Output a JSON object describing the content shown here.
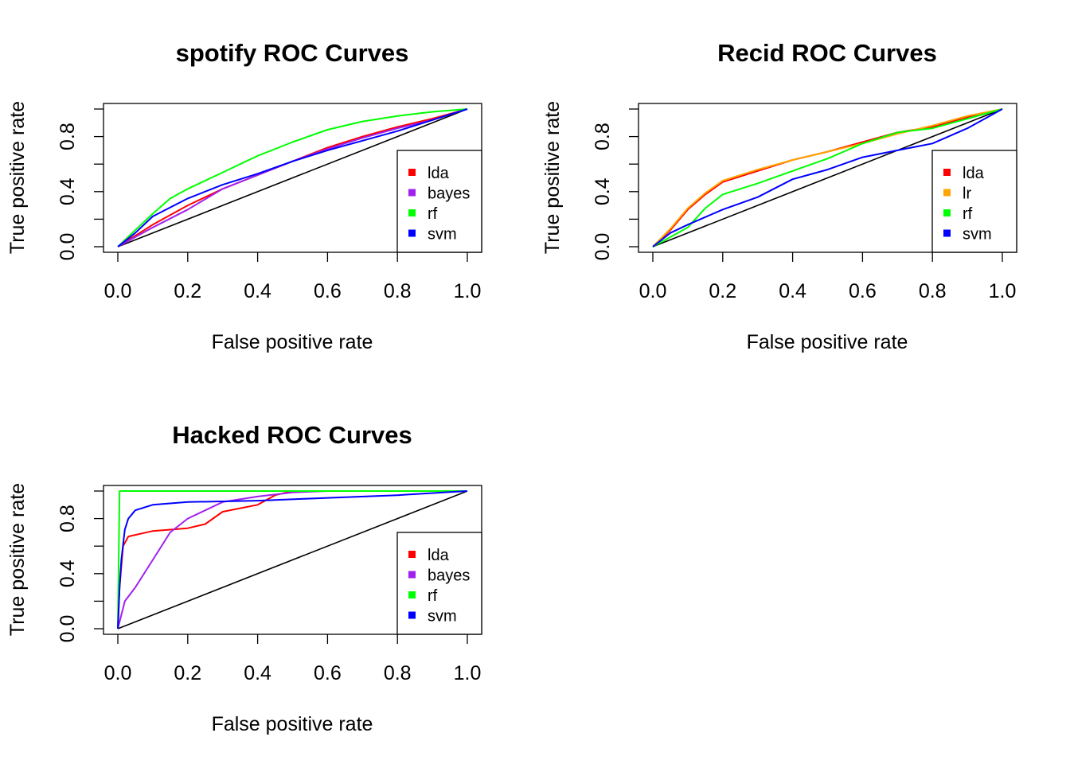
{
  "chart_data": [
    {
      "type": "line",
      "title": "spotify ROC Curves",
      "xlabel": "False positive rate",
      "ylabel": "True positive rate",
      "xlim": [
        0,
        1
      ],
      "ylim": [
        0,
        1
      ],
      "xticks": [
        "0.0",
        "0.2",
        "0.4",
        "0.6",
        "0.8",
        "1.0"
      ],
      "yticks": [
        "0.0",
        "0.4",
        "0.8"
      ],
      "legend_position": "bottom-right",
      "diagonal": true,
      "series": [
        {
          "name": "lda",
          "color": "#ff0000",
          "points": [
            [
              0,
              0
            ],
            [
              0.05,
              0.08
            ],
            [
              0.1,
              0.16
            ],
            [
              0.2,
              0.3
            ],
            [
              0.3,
              0.42
            ],
            [
              0.4,
              0.52
            ],
            [
              0.5,
              0.62
            ],
            [
              0.6,
              0.72
            ],
            [
              0.7,
              0.8
            ],
            [
              0.8,
              0.87
            ],
            [
              0.9,
              0.93
            ],
            [
              1,
              1
            ]
          ]
        },
        {
          "name": "bayes",
          "color": "#a020f0",
          "points": [
            [
              0,
              0
            ],
            [
              0.05,
              0.07
            ],
            [
              0.1,
              0.14
            ],
            [
              0.2,
              0.27
            ],
            [
              0.3,
              0.42
            ],
            [
              0.4,
              0.52
            ],
            [
              0.5,
              0.62
            ],
            [
              0.6,
              0.71
            ],
            [
              0.7,
              0.79
            ],
            [
              0.8,
              0.86
            ],
            [
              0.9,
              0.92
            ],
            [
              1,
              1
            ]
          ]
        },
        {
          "name": "rf",
          "color": "#00ff00",
          "points": [
            [
              0,
              0
            ],
            [
              0.05,
              0.12
            ],
            [
              0.1,
              0.24
            ],
            [
              0.15,
              0.35
            ],
            [
              0.2,
              0.42
            ],
            [
              0.3,
              0.54
            ],
            [
              0.4,
              0.66
            ],
            [
              0.5,
              0.76
            ],
            [
              0.6,
              0.85
            ],
            [
              0.7,
              0.91
            ],
            [
              0.8,
              0.95
            ],
            [
              0.9,
              0.98
            ],
            [
              1,
              1
            ]
          ]
        },
        {
          "name": "svm",
          "color": "#0000ff",
          "points": [
            [
              0,
              0
            ],
            [
              0.05,
              0.1
            ],
            [
              0.1,
              0.22
            ],
            [
              0.2,
              0.35
            ],
            [
              0.3,
              0.45
            ],
            [
              0.4,
              0.53
            ],
            [
              0.5,
              0.62
            ],
            [
              0.6,
              0.7
            ],
            [
              0.7,
              0.77
            ],
            [
              0.8,
              0.84
            ],
            [
              0.9,
              0.92
            ],
            [
              1,
              1
            ]
          ]
        }
      ]
    },
    {
      "type": "line",
      "title": "Recid ROC Curves",
      "xlabel": "False positive rate",
      "ylabel": "True positive rate",
      "xlim": [
        0,
        1
      ],
      "ylim": [
        0,
        1
      ],
      "xticks": [
        "0.0",
        "0.2",
        "0.4",
        "0.6",
        "0.8",
        "1.0"
      ],
      "yticks": [
        "0.0",
        "0.4",
        "0.8"
      ],
      "legend_position": "bottom-right",
      "diagonal": true,
      "series": [
        {
          "name": "lda",
          "color": "#ff0000",
          "points": [
            [
              0,
              0
            ],
            [
              0.05,
              0.12
            ],
            [
              0.1,
              0.27
            ],
            [
              0.15,
              0.38
            ],
            [
              0.2,
              0.47
            ],
            [
              0.3,
              0.55
            ],
            [
              0.4,
              0.63
            ],
            [
              0.5,
              0.69
            ],
            [
              0.6,
              0.76
            ],
            [
              0.7,
              0.83
            ],
            [
              0.8,
              0.87
            ],
            [
              0.9,
              0.94
            ],
            [
              1,
              1
            ]
          ]
        },
        {
          "name": "lr",
          "color": "#ffa500",
          "points": [
            [
              0,
              0
            ],
            [
              0.05,
              0.13
            ],
            [
              0.1,
              0.28
            ],
            [
              0.15,
              0.39
            ],
            [
              0.2,
              0.48
            ],
            [
              0.3,
              0.56
            ],
            [
              0.4,
              0.63
            ],
            [
              0.5,
              0.69
            ],
            [
              0.6,
              0.75
            ],
            [
              0.7,
              0.82
            ],
            [
              0.8,
              0.88
            ],
            [
              0.9,
              0.95
            ],
            [
              1,
              1
            ]
          ]
        },
        {
          "name": "rf",
          "color": "#00ff00",
          "points": [
            [
              0,
              0
            ],
            [
              0.05,
              0.07
            ],
            [
              0.1,
              0.14
            ],
            [
              0.15,
              0.28
            ],
            [
              0.2,
              0.38
            ],
            [
              0.3,
              0.46
            ],
            [
              0.4,
              0.55
            ],
            [
              0.5,
              0.64
            ],
            [
              0.6,
              0.75
            ],
            [
              0.7,
              0.83
            ],
            [
              0.8,
              0.86
            ],
            [
              0.9,
              0.93
            ],
            [
              1,
              1
            ]
          ]
        },
        {
          "name": "svm",
          "color": "#0000ff",
          "points": [
            [
              0,
              0
            ],
            [
              0.05,
              0.1
            ],
            [
              0.1,
              0.16
            ],
            [
              0.2,
              0.27
            ],
            [
              0.3,
              0.36
            ],
            [
              0.4,
              0.49
            ],
            [
              0.5,
              0.56
            ],
            [
              0.6,
              0.65
            ],
            [
              0.7,
              0.7
            ],
            [
              0.8,
              0.75
            ],
            [
              0.9,
              0.86
            ],
            [
              1,
              1
            ]
          ]
        }
      ]
    },
    {
      "type": "line",
      "title": "Hacked ROC Curves",
      "xlabel": "False positive rate",
      "ylabel": "True positive rate",
      "xlim": [
        0,
        1
      ],
      "ylim": [
        0,
        1
      ],
      "xticks": [
        "0.0",
        "0.2",
        "0.4",
        "0.6",
        "0.8",
        "1.0"
      ],
      "yticks": [
        "0.0",
        "0.4",
        "0.8"
      ],
      "legend_position": "bottom-right",
      "diagonal": true,
      "series": [
        {
          "name": "lda",
          "color": "#ff0000",
          "points": [
            [
              0,
              0
            ],
            [
              0.005,
              0.3
            ],
            [
              0.015,
              0.6
            ],
            [
              0.03,
              0.67
            ],
            [
              0.1,
              0.71
            ],
            [
              0.2,
              0.73
            ],
            [
              0.25,
              0.76
            ],
            [
              0.3,
              0.85
            ],
            [
              0.4,
              0.9
            ],
            [
              0.45,
              0.97
            ],
            [
              0.5,
              1
            ],
            [
              1,
              1
            ]
          ]
        },
        {
          "name": "bayes",
          "color": "#a020f0",
          "points": [
            [
              0,
              0
            ],
            [
              0.02,
              0.2
            ],
            [
              0.05,
              0.3
            ],
            [
              0.1,
              0.5
            ],
            [
              0.15,
              0.7
            ],
            [
              0.2,
              0.8
            ],
            [
              0.3,
              0.92
            ],
            [
              0.4,
              0.96
            ],
            [
              0.5,
              0.99
            ],
            [
              0.6,
              1
            ],
            [
              1,
              1
            ]
          ]
        },
        {
          "name": "rf",
          "color": "#00ff00",
          "points": [
            [
              0,
              0
            ],
            [
              0.005,
              1
            ],
            [
              1,
              1
            ]
          ]
        },
        {
          "name": "svm",
          "color": "#0000ff",
          "points": [
            [
              0,
              0
            ],
            [
              0.005,
              0.3
            ],
            [
              0.01,
              0.5
            ],
            [
              0.02,
              0.72
            ],
            [
              0.03,
              0.8
            ],
            [
              0.05,
              0.86
            ],
            [
              0.1,
              0.9
            ],
            [
              0.2,
              0.92
            ],
            [
              0.4,
              0.93
            ],
            [
              0.6,
              0.95
            ],
            [
              0.8,
              0.97
            ],
            [
              1,
              1
            ]
          ]
        }
      ]
    }
  ]
}
